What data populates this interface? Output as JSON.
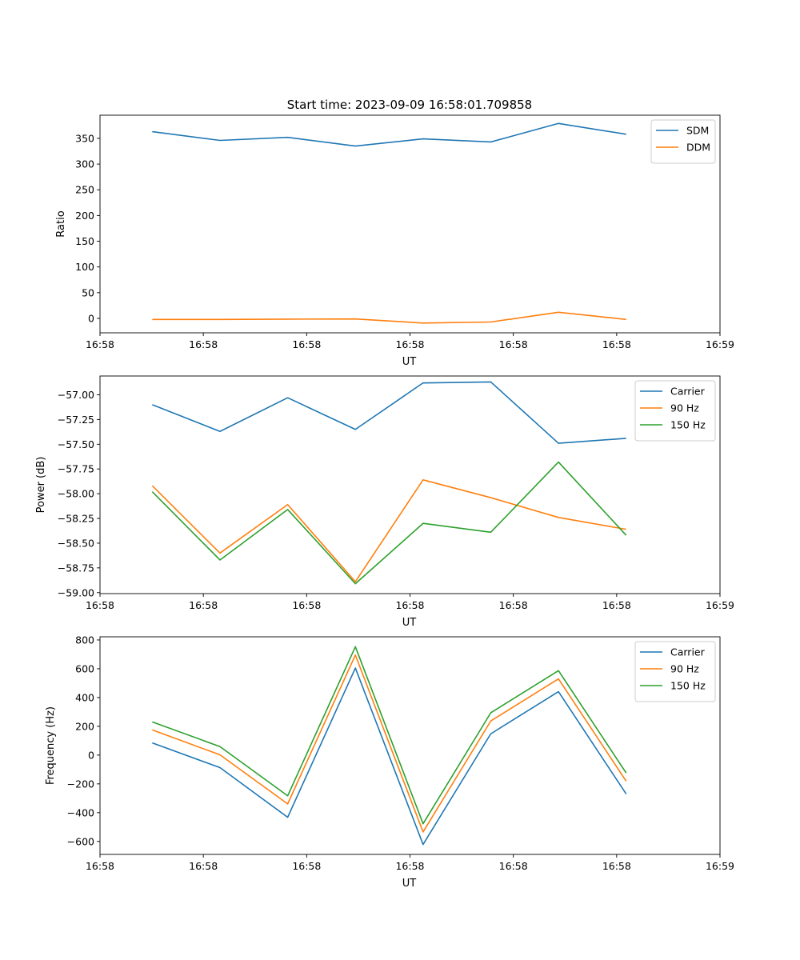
{
  "figure_title": "Start time: 2023-09-09 16:58:01.709858",
  "chart_data": [
    {
      "type": "line",
      "title": "Start time: 2023-09-09 16:58:01.709858",
      "xlabel": "UT",
      "ylabel": "Ratio",
      "x_tick_labels": [
        "16:58",
        "16:58",
        "16:58",
        "16:58",
        "16:58",
        "16:58",
        "16:59"
      ],
      "xlim": [
        0,
        9.25
      ],
      "x_ticks": [
        0,
        1.5417,
        3.0833,
        4.625,
        6.1667,
        7.7083,
        9.25
      ],
      "ylim": [
        -28,
        395
      ],
      "y_ticks": [
        0,
        50,
        100,
        150,
        200,
        250,
        300,
        350
      ],
      "y_tick_labels": [
        "0",
        "50",
        "100",
        "150",
        "200",
        "250",
        "300",
        "350"
      ],
      "legend_position": "top-right",
      "x": [
        0.78,
        1.79,
        2.8,
        3.81,
        4.82,
        5.83,
        6.84,
        7.85
      ],
      "series": [
        {
          "name": "SDM",
          "color": "#1f77b4",
          "values": [
            363,
            346,
            352,
            335,
            349,
            343,
            379,
            358
          ]
        },
        {
          "name": "DDM",
          "color": "#ff7f0e",
          "values": [
            -2,
            -2,
            -1.5,
            -1,
            -9,
            -7,
            12,
            -2
          ]
        }
      ]
    },
    {
      "type": "line",
      "title": "",
      "xlabel": "UT",
      "ylabel": "Power (dB)",
      "x_tick_labels": [
        "16:58",
        "16:58",
        "16:58",
        "16:58",
        "16:58",
        "16:58",
        "16:59"
      ],
      "xlim": [
        0,
        9.25
      ],
      "x_ticks": [
        0,
        1.5417,
        3.0833,
        4.625,
        6.1667,
        7.7083,
        9.25
      ],
      "ylim": [
        -59.01,
        -56.81
      ],
      "y_ticks": [
        -59.0,
        -58.75,
        -58.5,
        -58.25,
        -58.0,
        -57.75,
        -57.5,
        -57.25,
        -57.0
      ],
      "y_tick_labels": [
        "−59.00",
        "−58.75",
        "−58.50",
        "−58.25",
        "−58.00",
        "−57.75",
        "−57.50",
        "−57.25",
        "−57.00"
      ],
      "legend_position": "top-right",
      "x": [
        0.78,
        1.79,
        2.8,
        3.81,
        4.82,
        5.83,
        6.84,
        7.85
      ],
      "series": [
        {
          "name": "Carrier",
          "color": "#1f77b4",
          "values": [
            -57.1,
            -57.37,
            -57.03,
            -57.35,
            -56.88,
            -56.87,
            -57.49,
            -57.44
          ]
        },
        {
          "name": "90 Hz",
          "color": "#ff7f0e",
          "values": [
            -57.92,
            -58.6,
            -58.11,
            -58.89,
            -57.86,
            -58.04,
            -58.24,
            -58.36
          ]
        },
        {
          "name": "150 Hz",
          "color": "#2ca02c",
          "values": [
            -57.98,
            -58.67,
            -58.16,
            -58.91,
            -58.3,
            -58.39,
            -57.68,
            -58.42
          ]
        }
      ]
    },
    {
      "type": "line",
      "title": "",
      "xlabel": "UT",
      "ylabel": "Frequency (Hz)",
      "x_tick_labels": [
        "16:58",
        "16:58",
        "16:58",
        "16:58",
        "16:58",
        "16:58",
        "16:59"
      ],
      "xlim": [
        0,
        9.25
      ],
      "x_ticks": [
        0,
        1.5417,
        3.0833,
        4.625,
        6.1667,
        7.7083,
        9.25
      ],
      "ylim": [
        -690,
        822
      ],
      "y_ticks": [
        -600,
        -400,
        -200,
        0,
        200,
        400,
        600,
        800
      ],
      "y_tick_labels": [
        "−600",
        "−400",
        "−200",
        "0",
        "200",
        "400",
        "600",
        "800"
      ],
      "legend_position": "top-right",
      "x": [
        0.78,
        1.79,
        2.8,
        3.81,
        4.82,
        5.83,
        6.84,
        7.85
      ],
      "series": [
        {
          "name": "Carrier",
          "color": "#1f77b4",
          "values": [
            85,
            -87,
            -432,
            605,
            -621,
            148,
            441,
            -270
          ]
        },
        {
          "name": "90 Hz",
          "color": "#ff7f0e",
          "values": [
            175,
            2,
            -339,
            695,
            -534,
            237,
            530,
            -181
          ]
        },
        {
          "name": "150 Hz",
          "color": "#2ca02c",
          "values": [
            231,
            59,
            -283,
            753,
            -477,
            294,
            587,
            -124
          ]
        }
      ]
    }
  ]
}
